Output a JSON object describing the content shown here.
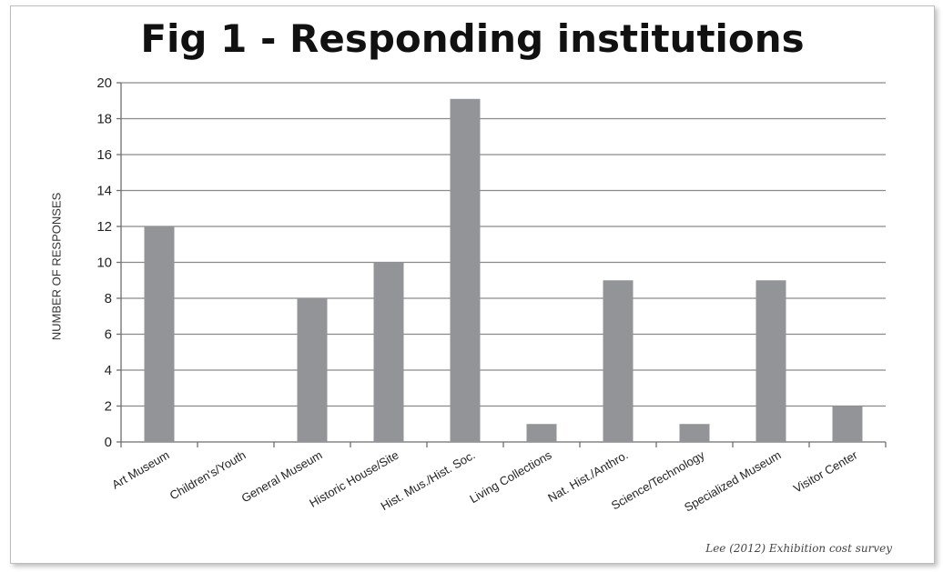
{
  "chart_data": {
    "type": "bar",
    "title": "Fig 1 - Responding institutions",
    "ylabel": "NUMBER OF RESPONSES",
    "xlabel": "",
    "ylim": [
      0,
      20
    ],
    "y_ticks": [
      0,
      2,
      4,
      6,
      8,
      10,
      12,
      14,
      16,
      18,
      20
    ],
    "grid": true,
    "bar_color": "#929497",
    "categories": [
      "Art Museum",
      "Children's/Youth",
      "General Museum",
      "Historic House/Site",
      "Hist. Mus./Hist. Soc.",
      "Living Collections",
      "Nat. Hist./Anthro.",
      "Science/Technology",
      "Specialized Museum",
      "Visitor Center"
    ],
    "values": [
      12,
      0,
      8,
      10,
      19.1,
      1,
      9,
      1,
      9,
      2
    ]
  },
  "source_note": "Lee (2012) Exhibition cost survey"
}
